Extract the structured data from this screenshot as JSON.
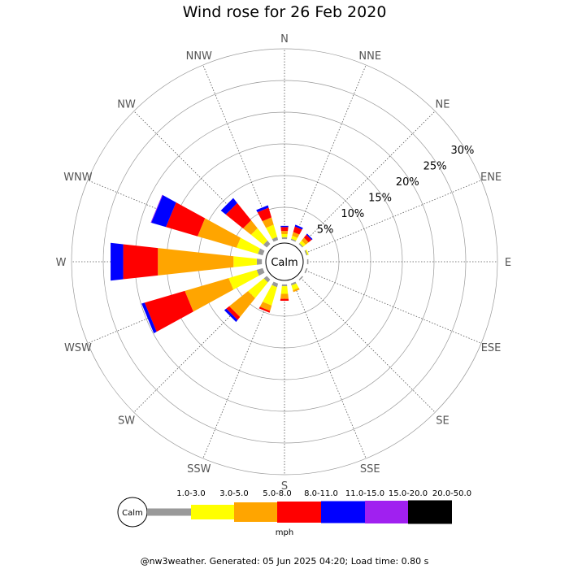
{
  "chart_data": {
    "type": "wind-rose",
    "title": "Wind rose for 26 Feb 2020",
    "calm_label": "Calm",
    "units": "mph",
    "radial_max": 30,
    "ring_labels": [
      "5%",
      "10%",
      "15%",
      "20%",
      "25%",
      "30%"
    ],
    "ring_values": [
      5,
      10,
      15,
      20,
      25,
      30
    ],
    "directions": [
      "N",
      "NNE",
      "NE",
      "ENE",
      "E",
      "ESE",
      "SE",
      "SSE",
      "S",
      "SSW",
      "SW",
      "WSW",
      "W",
      "WNW",
      "NW",
      "NNW"
    ],
    "speed_bins": [
      {
        "label": "1.0-3.0",
        "color": "#999999"
      },
      {
        "label": "3.0-5.0",
        "color": "#ffff00"
      },
      {
        "label": "5.0-8.0",
        "color": "#ffa500"
      },
      {
        "label": "8.0-11.0",
        "color": "#ff0000"
      },
      {
        "label": "11.0-15.0",
        "color": "#0000ff"
      },
      {
        "label": "15.0-20.0",
        "color": "#a020f0"
      },
      {
        "label": "20.0-50.0",
        "color": "#000000"
      }
    ],
    "series": [
      {
        "direction": "N",
        "values": [
          0.3,
          0.5,
          0.5,
          0.6,
          0.2,
          0,
          0
        ]
      },
      {
        "direction": "NNE",
        "values": [
          0.2,
          0.5,
          0.6,
          0.9,
          0.3,
          0,
          0
        ]
      },
      {
        "direction": "NE",
        "values": [
          0.2,
          0.5,
          0.6,
          0.6,
          0.2,
          0,
          0
        ]
      },
      {
        "direction": "ENE",
        "values": [
          0.2,
          0.2,
          0,
          0,
          0,
          0,
          0
        ]
      },
      {
        "direction": "E",
        "values": [
          0.2,
          0,
          0,
          0,
          0,
          0,
          0
        ]
      },
      {
        "direction": "ESE",
        "values": [
          0.2,
          0,
          0,
          0,
          0,
          0,
          0
        ]
      },
      {
        "direction": "SE",
        "values": [
          0.2,
          0,
          0,
          0,
          0,
          0,
          0
        ]
      },
      {
        "direction": "SSE",
        "values": [
          0.3,
          0.8,
          0.3,
          0,
          0,
          0,
          0
        ]
      },
      {
        "direction": "S",
        "values": [
          0.3,
          1.2,
          0.8,
          0.3,
          0,
          0,
          0
        ]
      },
      {
        "direction": "SSW",
        "values": [
          0.6,
          3.0,
          0.9,
          0.3,
          0,
          0,
          0
        ]
      },
      {
        "direction": "SW",
        "values": [
          0.6,
          3.2,
          3.8,
          0.6,
          0.4,
          0,
          0
        ]
      },
      {
        "direction": "WSW",
        "values": [
          1.0,
          4.6,
          7.2,
          6.6,
          0.5,
          0,
          0
        ]
      },
      {
        "direction": "W",
        "values": [
          0.8,
          3.7,
          12.0,
          5.5,
          2.0,
          0,
          0
        ]
      },
      {
        "direction": "WNW",
        "values": [
          0.8,
          3.5,
          6.4,
          5.2,
          2.4,
          0.1,
          0
        ]
      },
      {
        "direction": "NW",
        "values": [
          0.7,
          2.5,
          1.6,
          3.5,
          1.0,
          0,
          0
        ]
      },
      {
        "direction": "NNW",
        "values": [
          0.5,
          2.0,
          1.2,
          1.6,
          0.4,
          0,
          0
        ]
      }
    ],
    "footer": "@nw3weather. Generated: 05 Jun 2025 04:20; Load time: 0.80 s"
  }
}
